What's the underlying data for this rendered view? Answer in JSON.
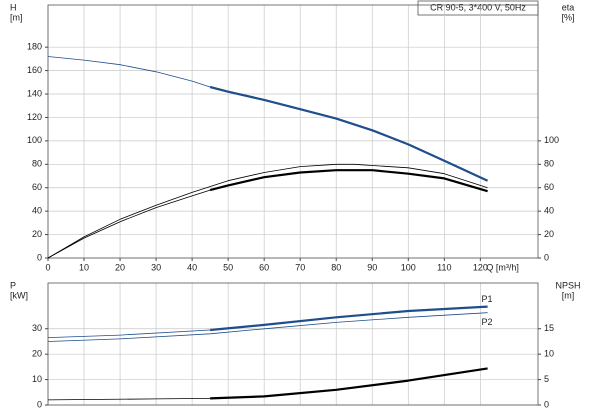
{
  "title": "CR 90-5, 3*400 V, 50Hz",
  "chart_data": [
    {
      "type": "line",
      "ylabel": "H",
      "yunit": "[m]",
      "y2label": "eta",
      "y2unit": "[%]",
      "xlabel": "Q [m³/h]",
      "xlim": [
        0,
        136
      ],
      "xticks": [
        0,
        10,
        20,
        30,
        40,
        50,
        60,
        70,
        80,
        90,
        100,
        110,
        120
      ],
      "ylim": [
        0,
        216
      ],
      "yticks": [
        0,
        20,
        40,
        60,
        80,
        100,
        120,
        140,
        160,
        180
      ],
      "y2lim": [
        0,
        216
      ],
      "y2ticks": [
        0,
        20,
        40,
        60,
        80,
        100
      ],
      "grid": true,
      "series": [
        {
          "color": "#1f4e8c",
          "width": 0.8,
          "x": [
            0,
            10,
            20,
            30,
            40,
            45
          ],
          "values": [
            172,
            169,
            165,
            159,
            151,
            146
          ]
        },
        {
          "color": "#1f4e8c",
          "width": 2.2,
          "x": [
            45,
            50,
            60,
            70,
            80,
            90,
            100,
            110,
            122
          ],
          "values": [
            146,
            142,
            135,
            127,
            119,
            109,
            97,
            83,
            66
          ]
        },
        {
          "color": "#000000",
          "width": 0.8,
          "axis": "y2",
          "x": [
            0,
            10,
            20,
            30,
            40,
            50,
            60,
            70,
            80,
            85,
            90,
            100,
            110,
            122
          ],
          "values": [
            0,
            18,
            33,
            45,
            56,
            66,
            73,
            78,
            80,
            80,
            79,
            77,
            72,
            60
          ]
        },
        {
          "color": "#000000",
          "width": 0.8,
          "axis": "y2",
          "x": [
            0,
            10,
            20,
            30,
            40,
            45
          ],
          "values": [
            0,
            17,
            31,
            43,
            53,
            58
          ]
        },
        {
          "color": "#000000",
          "width": 2.2,
          "axis": "y2",
          "x": [
            45,
            50,
            60,
            70,
            80,
            85,
            90,
            100,
            110,
            122
          ],
          "values": [
            58,
            62,
            69,
            73,
            75,
            75,
            75,
            72,
            68,
            57
          ]
        }
      ]
    },
    {
      "type": "line",
      "ylabel": "P",
      "yunit": "[kW]",
      "y2label": "NPSH",
      "y2unit": "[m]",
      "xlim": [
        0,
        136
      ],
      "ylim": [
        0,
        48
      ],
      "yticks": [
        0,
        10,
        20,
        30
      ],
      "y2lim": [
        0,
        24
      ],
      "y2ticks": [
        0,
        5,
        10,
        15
      ],
      "grid": true,
      "series": [
        {
          "color": "#1f4e8c",
          "width": 0.8,
          "x": [
            0,
            20,
            45
          ],
          "values": [
            26.5,
            27.5,
            29.5
          ]
        },
        {
          "name": "P1",
          "color": "#1f4e8c",
          "width": 2.2,
          "x": [
            45,
            60,
            80,
            100,
            122
          ],
          "values": [
            29.5,
            31.5,
            34.5,
            37,
            38.7
          ]
        },
        {
          "name": "P2",
          "color": "#1f4e8c",
          "width": 0.8,
          "x": [
            0,
            20,
            45,
            60,
            80,
            100,
            122
          ],
          "values": [
            25,
            26,
            28,
            30,
            32.5,
            34.5,
            36.3
          ]
        },
        {
          "color": "#000000",
          "width": 0.8,
          "axis": "y2",
          "x": [
            0,
            30,
            45
          ],
          "values": [
            1,
            1.2,
            1.3
          ]
        },
        {
          "color": "#000000",
          "width": 2.2,
          "axis": "y2",
          "x": [
            45,
            60,
            80,
            100,
            122
          ],
          "values": [
            1.3,
            1.7,
            3,
            4.8,
            7.2
          ]
        }
      ]
    }
  ]
}
